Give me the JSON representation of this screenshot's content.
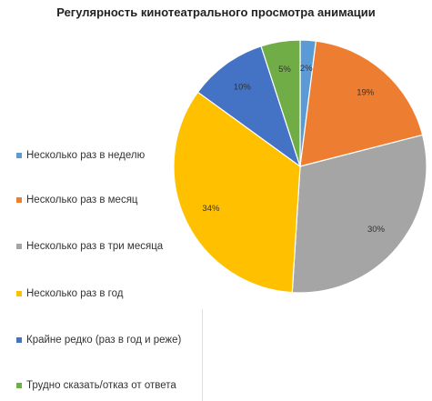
{
  "chart_data": {
    "type": "pie",
    "title": "Регулярность кинотеатрального просмотра анимации",
    "categories": [
      "Несколько раз в неделю",
      "Несколько раз в месяц",
      "Несколько раз в три месяца",
      "Несколько раз в год",
      "Крайне редко (раз в год и реже)",
      "Трудно сказать/отказ от ответа"
    ],
    "values": [
      2,
      19,
      30,
      34,
      10,
      5
    ],
    "labels": [
      "2%",
      "19%",
      "30%",
      "34%",
      "10%",
      "5%"
    ],
    "colors": [
      "#5b9bd5",
      "#ed7d31",
      "#a5a5a5",
      "#ffc000",
      "#4472c4",
      "#70ad47"
    ],
    "legend_position": "left"
  }
}
